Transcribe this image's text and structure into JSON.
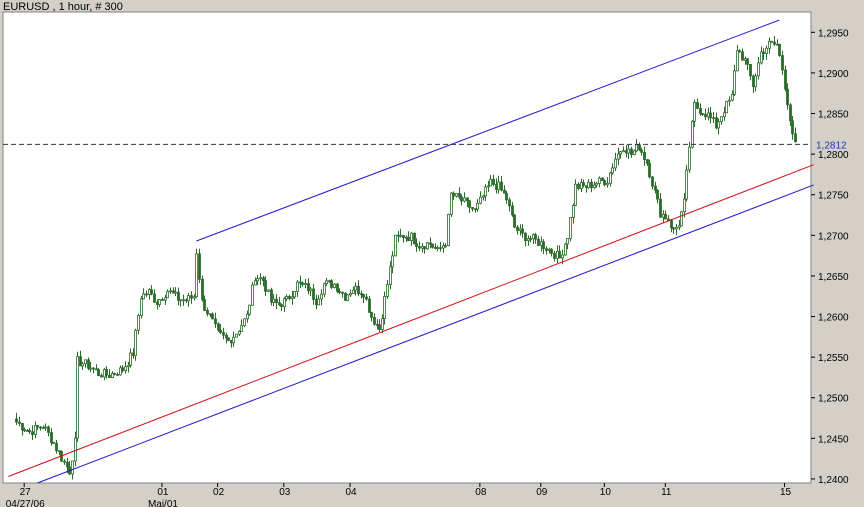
{
  "header": {
    "title": "EURUSD , 1 hour, # 300"
  },
  "chart_data": {
    "type": "candlestick",
    "symbol": "EURUSD",
    "timeframe": "1 hour",
    "bars": "300",
    "ylim": [
      1.2395,
      1.2975
    ],
    "xlim": [
      -5,
      300
    ],
    "y_ticks": [
      "1,2400",
      "1,2450",
      "1,2500",
      "1,2550",
      "1,2600",
      "1,2650",
      "1,2700",
      "1,2750",
      "1,2800",
      "1,2850",
      "1,2900",
      "1,2950"
    ],
    "current_price_label": "1,2812",
    "current_price": 1.2812,
    "x_ticks": [
      {
        "label": "27",
        "x": 3
      },
      {
        "label": "01",
        "x": 55
      },
      {
        "label": "02",
        "x": 76
      },
      {
        "label": "03",
        "x": 101
      },
      {
        "label": "04",
        "x": 126
      },
      {
        "label": "08",
        "x": 175
      },
      {
        "label": "09",
        "x": 198
      },
      {
        "label": "10",
        "x": 222
      },
      {
        "label": "11",
        "x": 245
      },
      {
        "label": "15",
        "x": 290
      }
    ],
    "x_sub_labels": [
      {
        "label": "04/27/06",
        "x": 3
      },
      {
        "label": "Mai/01",
        "x": 55
      }
    ],
    "channel": [
      {
        "name": "upper",
        "color": "#1a1acc",
        "x": [
          68,
          288
        ],
        "y": [
          1.2693,
          1.2965
        ]
      },
      {
        "name": "lower",
        "color": "#1a1acc",
        "x": [
          8,
          301
        ],
        "y": [
          1.2395,
          1.2762
        ]
      },
      {
        "name": "mid",
        "color": "#d11111",
        "x": [
          -3,
          301
        ],
        "y": [
          1.2403,
          1.2787
        ]
      }
    ],
    "anchors": [
      [
        0,
        1.247
      ],
      [
        5,
        1.2458
      ],
      [
        10,
        1.2466
      ],
      [
        13,
        1.245
      ],
      [
        18,
        1.242
      ],
      [
        20,
        1.241
      ],
      [
        22,
        1.2445
      ],
      [
        23,
        1.2545
      ],
      [
        27,
        1.254
      ],
      [
        31,
        1.253
      ],
      [
        35,
        1.2528
      ],
      [
        40,
        1.2535
      ],
      [
        44,
        1.2555
      ],
      [
        47,
        1.2625
      ],
      [
        50,
        1.263
      ],
      [
        53,
        1.2618
      ],
      [
        57,
        1.2632
      ],
      [
        61,
        1.2622
      ],
      [
        64,
        1.262
      ],
      [
        67,
        1.2625
      ],
      [
        68,
        1.268
      ],
      [
        70,
        1.2618
      ],
      [
        73,
        1.26
      ],
      [
        76,
        1.2578
      ],
      [
        80,
        1.257
      ],
      [
        83,
        1.258
      ],
      [
        87,
        1.26
      ],
      [
        90,
        1.265
      ],
      [
        93,
        1.2645
      ],
      [
        96,
        1.2618
      ],
      [
        99,
        1.2615
      ],
      [
        102,
        1.262
      ],
      [
        106,
        1.264
      ],
      [
        110,
        1.2635
      ],
      [
        113,
        1.262
      ],
      [
        116,
        1.264
      ],
      [
        120,
        1.264
      ],
      [
        124,
        1.2625
      ],
      [
        127,
        1.2635
      ],
      [
        131,
        1.263
      ],
      [
        134,
        1.26
      ],
      [
        137,
        1.2585
      ],
      [
        140,
        1.264
      ],
      [
        143,
        1.2695
      ],
      [
        146,
        1.27
      ],
      [
        149,
        1.2698
      ],
      [
        152,
        1.2688
      ],
      [
        156,
        1.269
      ],
      [
        159,
        1.268
      ],
      [
        162,
        1.2692
      ],
      [
        164,
        1.275
      ],
      [
        167,
        1.2745
      ],
      [
        170,
        1.2738
      ],
      [
        173,
        1.273
      ],
      [
        176,
        1.2748
      ],
      [
        179,
        1.2765
      ],
      [
        182,
        1.276
      ],
      [
        185,
        1.2745
      ],
      [
        188,
        1.271
      ],
      [
        191,
        1.27
      ],
      [
        195,
        1.2695
      ],
      [
        198,
        1.269
      ],
      [
        202,
        1.268
      ],
      [
        205,
        1.2672
      ],
      [
        208,
        1.27
      ],
      [
        211,
        1.276
      ],
      [
        215,
        1.276
      ],
      [
        219,
        1.2765
      ],
      [
        223,
        1.2768
      ],
      [
        226,
        1.2795
      ],
      [
        229,
        1.281
      ],
      [
        232,
        1.28
      ],
      [
        235,
        1.281
      ],
      [
        238,
        1.279
      ],
      [
        240,
        1.2765
      ],
      [
        243,
        1.2728
      ],
      [
        246,
        1.272
      ],
      [
        248,
        1.2705
      ],
      [
        250,
        1.2715
      ],
      [
        252,
        1.274
      ],
      [
        254,
        1.281
      ],
      [
        256,
        1.286
      ],
      [
        258,
        1.2855
      ],
      [
        261,
        1.2848
      ],
      [
        264,
        1.2835
      ],
      [
        267,
        1.2855
      ],
      [
        270,
        1.287
      ],
      [
        272,
        1.293
      ],
      [
        275,
        1.2915
      ],
      [
        278,
        1.2885
      ],
      [
        281,
        1.2925
      ],
      [
        284,
        1.2935
      ],
      [
        287,
        1.2935
      ],
      [
        289,
        1.2905
      ],
      [
        291,
        1.2865
      ],
      [
        293,
        1.282
      ],
      [
        294,
        1.2812
      ]
    ]
  },
  "colors": {
    "background": "#d4d0c8",
    "plot_background": "#ffffff",
    "candle": "#2a6b2a",
    "channel": "#1a1acc",
    "midline": "#d11111",
    "price_label": "#1a35c9"
  }
}
